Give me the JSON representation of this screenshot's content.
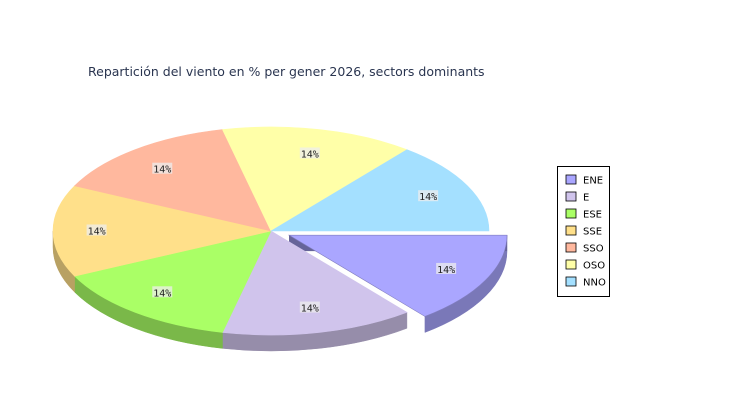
{
  "chart_data": {
    "type": "pie",
    "title": "Repartición del viento en % per gener 2026, sectors dominants",
    "categories": [
      "ENE",
      "E",
      "ESE",
      "SSE",
      "SSO",
      "OSO",
      "NNO"
    ],
    "values": [
      14.2857,
      14.2857,
      14.2857,
      14.2857,
      14.2857,
      14.2857,
      14.2857
    ],
    "data_labels": [
      "14%",
      "14%",
      "14%",
      "14%",
      "14%",
      "14%",
      "14%"
    ],
    "colors": [
      "#aaa6ff",
      "#d0c4ec",
      "#aaff66",
      "#ffe08a",
      "#ffb89e",
      "#ffffa8",
      "#a4e0ff"
    ],
    "exploded": [
      "ENE"
    ],
    "style": "3d",
    "legend_position": "right"
  }
}
